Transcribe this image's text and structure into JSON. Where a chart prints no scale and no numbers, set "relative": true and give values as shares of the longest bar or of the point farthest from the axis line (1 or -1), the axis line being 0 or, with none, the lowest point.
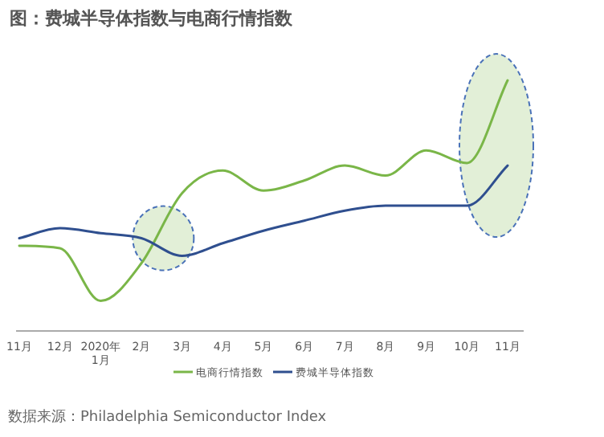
{
  "chart_data": {
    "type": "line",
    "title": "图：费城半导体指数与电商行情指数",
    "relative": true,
    "categories": [
      "11月",
      "12月",
      "2020年\n1月",
      "2月",
      "3月",
      "4月",
      "5月",
      "6月",
      "7月",
      "8月",
      "9月",
      "10月",
      "11月"
    ],
    "series": [
      {
        "name": "电商行情指数",
        "color": "#7ab648",
        "values": [
          0.34,
          0.33,
          0.12,
          0.27,
          0.55,
          0.64,
          0.56,
          0.6,
          0.66,
          0.62,
          0.72,
          0.67,
          1.0
        ]
      },
      {
        "name": "费城半导体指数",
        "color": "#2f4f8f",
        "values": [
          0.37,
          0.41,
          0.39,
          0.37,
          0.3,
          0.35,
          0.4,
          0.44,
          0.48,
          0.5,
          0.5,
          0.5,
          0.66
        ]
      }
    ],
    "legend": "bottom",
    "annotations": [
      "数据来源：Philadelphia Semiconductor Index"
    ]
  }
}
